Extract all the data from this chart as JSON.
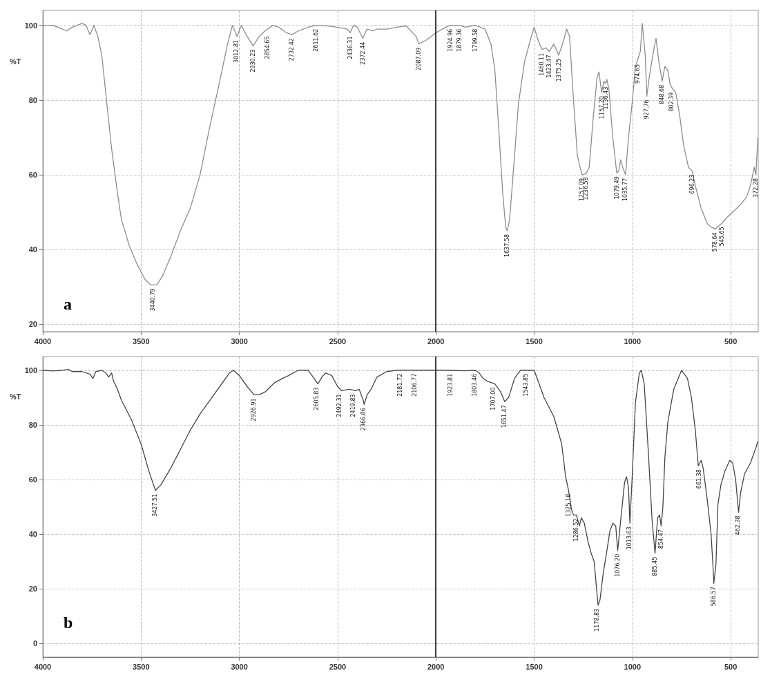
{
  "chart_data": [
    {
      "type": "line",
      "ylabel": "%T",
      "xlim": [
        4000,
        360
      ],
      "xticks": [
        4000,
        3500,
        3000,
        2500,
        2000,
        1500,
        1000,
        500
      ],
      "ylim": [
        18,
        104
      ],
      "yticks": [
        20,
        40,
        60,
        80,
        100
      ],
      "grid": true,
      "marker": "none",
      "series": [
        {
          "color": "#8c8c8c",
          "x": [
            4000,
            3950,
            3900,
            3880,
            3850,
            3800,
            3780,
            3760,
            3740,
            3720,
            3700,
            3680,
            3650,
            3620,
            3600,
            3560,
            3520,
            3480,
            3450,
            3420,
            3390,
            3350,
            3300,
            3250,
            3200,
            3150,
            3100,
            3060,
            3035,
            3012,
            2990,
            2960,
            2930,
            2900,
            2870,
            2830,
            2800,
            2760,
            2732,
            2700,
            2650,
            2611,
            2550,
            2500,
            2450,
            2436,
            2420,
            2400,
            2372,
            2350,
            2320,
            2300,
            2250,
            2200,
            2150,
            2100,
            2087,
            2050,
            2000,
            1950,
            1924,
            1880,
            1850,
            1800,
            1750,
            1720,
            1700,
            1680,
            1660,
            1645,
            1637,
            1625,
            1600,
            1580,
            1550,
            1520,
            1500,
            1480,
            1460,
            1440,
            1423,
            1400,
            1375,
            1350,
            1335,
            1320,
            1300,
            1280,
            1257,
            1236,
            1220,
            1200,
            1180,
            1170,
            1157,
            1145,
            1136,
            1130,
            1120,
            1100,
            1080,
            1070,
            1060,
            1050,
            1035,
            1020,
            1000,
            985,
            975,
            960,
            950,
            935,
            927,
            915,
            890,
            880,
            865,
            849,
            835,
            820,
            808,
            795,
            780,
            760,
            740,
            715,
            696,
            680,
            650,
            620,
            600,
            578,
            546,
            520,
            480,
            450,
            420,
            400,
            380,
            372,
            362
          ],
          "values": [
            100,
            100,
            99,
            98.5,
            99.5,
            100.5,
            100,
            97.5,
            100,
            97,
            92,
            82,
            67,
            55,
            48,
            41,
            36,
            32,
            30.5,
            30.5,
            33,
            38,
            45,
            51,
            60,
            73,
            85,
            95,
            100,
            97,
            100,
            97,
            94.5,
            97,
            98.5,
            100,
            99.5,
            98,
            97.5,
            98.5,
            99.5,
            100,
            99.8,
            99.5,
            99,
            98,
            100,
            99.5,
            96.5,
            99,
            98.5,
            99,
            99,
            99.5,
            99.8,
            97,
            95,
            96,
            98,
            99.5,
            100,
            100,
            99.5,
            100,
            99,
            95,
            88,
            72,
            55,
            46,
            45,
            48,
            65,
            79,
            90,
            96,
            99.5,
            96,
            93.5,
            94,
            93,
            95,
            92,
            96,
            99,
            97,
            80,
            65,
            60,
            60.3,
            62,
            75,
            86,
            87.5,
            82,
            85,
            84.5,
            85.5,
            83,
            70,
            60.5,
            61,
            64,
            62,
            60,
            70,
            80,
            89,
            90.5,
            93,
            100.5,
            92,
            81,
            86,
            94,
            96.5,
            90,
            85,
            89,
            88,
            84,
            83,
            82,
            76,
            68,
            62,
            61,
            57,
            51,
            47,
            46,
            45.5,
            47,
            48.5,
            50.5,
            52,
            54,
            57,
            62,
            60,
            70
          ]
        }
      ],
      "ref_lines": [
        {
          "axis": "x",
          "value": 2000,
          "color": "#000000",
          "line_style": "solid"
        }
      ],
      "annotations": [
        "a",
        {
          "text": "3440.79",
          "x": 3440.79,
          "y": 30.5
        },
        {
          "text": "3012.81",
          "x": 3012.81,
          "y": 97
        },
        {
          "text": "2930.23",
          "x": 2930.23,
          "y": 94.5
        },
        {
          "text": "2854.65",
          "x": 2854.65,
          "y": 98
        },
        {
          "text": "2732.42",
          "x": 2732.42,
          "y": 97.5
        },
        {
          "text": "2611.62",
          "x": 2611.62,
          "y": 100
        },
        {
          "text": "2436.31",
          "x": 2436.31,
          "y": 98
        },
        {
          "text": "2372.44",
          "x": 2372.44,
          "y": 96.5
        },
        {
          "text": "2087.09",
          "x": 2087.09,
          "y": 95
        },
        {
          "text": "1924.96",
          "x": 1924.96,
          "y": 100
        },
        {
          "text": "1879.36",
          "x": 1879.36,
          "y": 100
        },
        {
          "text": "1799.58",
          "x": 1799.58,
          "y": 100
        },
        {
          "text": "1637.58",
          "x": 1637.58,
          "y": 45
        },
        {
          "text": "1460.11",
          "x": 1460.11,
          "y": 93.5
        },
        {
          "text": "1423.47",
          "x": 1423.47,
          "y": 93
        },
        {
          "text": "1375.25",
          "x": 1375.25,
          "y": 92
        },
        {
          "text": "1257.09",
          "x": 1257.09,
          "y": 60
        },
        {
          "text": "1236.58",
          "x": 1236.58,
          "y": 60.3
        },
        {
          "text": "1157.20",
          "x": 1157.2,
          "y": 82
        },
        {
          "text": "1136.43",
          "x": 1136.43,
          "y": 84.5
        },
        {
          "text": "1079.49",
          "x": 1079.49,
          "y": 60.5
        },
        {
          "text": "1035.77",
          "x": 1035.77,
          "y": 60
        },
        {
          "text": "974.65",
          "x": 974.65,
          "y": 90.5
        },
        {
          "text": "927.76",
          "x": 927.76,
          "y": 81
        },
        {
          "text": "848.68",
          "x": 848.68,
          "y": 85
        },
        {
          "text": "802.39",
          "x": 802.39,
          "y": 83
        },
        {
          "text": "696.23",
          "x": 696.23,
          "y": 61
        },
        {
          "text": "578.64",
          "x": 578.64,
          "y": 45.5
        },
        {
          "text": "545.65",
          "x": 545.65,
          "y": 47
        },
        {
          "text": "372.28",
          "x": 372.28,
          "y": 60
        }
      ]
    },
    {
      "type": "line",
      "ylabel": "%T",
      "xlim": [
        4000,
        360
      ],
      "xticks": [
        4000,
        3500,
        3000,
        2500,
        2000,
        1500,
        1000,
        500
      ],
      "ylim": [
        -5,
        105
      ],
      "yticks": [
        0,
        20,
        40,
        60,
        80,
        100
      ],
      "grid": true,
      "marker": "none",
      "series": [
        {
          "color": "#444444",
          "x": [
            4000,
            3950,
            3900,
            3870,
            3850,
            3800,
            3760,
            3745,
            3730,
            3700,
            3680,
            3665,
            3650,
            3640,
            3620,
            3600,
            3550,
            3500,
            3460,
            3427,
            3400,
            3350,
            3300,
            3250,
            3200,
            3150,
            3100,
            3050,
            3030,
            3000,
            2960,
            2925,
            2900,
            2870,
            2820,
            2780,
            2750,
            2700,
            2650,
            2620,
            2600,
            2580,
            2560,
            2530,
            2500,
            2480,
            2440,
            2410,
            2390,
            2370,
            2365,
            2350,
            2330,
            2300,
            2250,
            2200,
            2106,
            2000,
            1950,
            1850,
            1800,
            1780,
            1760,
            1740,
            1700,
            1670,
            1650,
            1630,
            1600,
            1570,
            1500,
            1480,
            1450,
            1400,
            1380,
            1360,
            1340,
            1325,
            1310,
            1300,
            1285,
            1270,
            1260,
            1245,
            1225,
            1210,
            1195,
            1175,
            1165,
            1150,
            1130,
            1115,
            1100,
            1085,
            1075,
            1060,
            1040,
            1030,
            1020,
            1013,
            1000,
            985,
            965,
            955,
            940,
            920,
            900,
            885,
            872,
            862,
            854,
            845,
            835,
            820,
            790,
            750,
            720,
            700,
            680,
            665,
            650,
            640,
            620,
            600,
            590,
            586,
            575,
            565,
            550,
            530,
            505,
            490,
            475,
            460,
            450,
            430,
            400,
            370,
            362
          ],
          "values": [
            100,
            99.7,
            100,
            100.3,
            99.5,
            99.5,
            98.5,
            97,
            99.5,
            100,
            99,
            97.5,
            99,
            96,
            93,
            89,
            82,
            73,
            63,
            56,
            58,
            64,
            71,
            78,
            84,
            89,
            94,
            99,
            100,
            98,
            94,
            91,
            91,
            92,
            95.5,
            97,
            98,
            100,
            100,
            97,
            95,
            97.5,
            99,
            98,
            94,
            92.5,
            93,
            92.5,
            93,
            89,
            87.5,
            91,
            93,
            97.5,
            99.5,
            100,
            100,
            100,
            100,
            99.8,
            100,
            99,
            97,
            96,
            95,
            92,
            88.5,
            90,
            97,
            100,
            100,
            96,
            90,
            83,
            78,
            73,
            61,
            56,
            49,
            47,
            47,
            43,
            46,
            44,
            37,
            33,
            30,
            14,
            16,
            25,
            34,
            41,
            44,
            43,
            34,
            45,
            59,
            61,
            57,
            44,
            63,
            88,
            99,
            100,
            95,
            71,
            45,
            33,
            46,
            47,
            43,
            50,
            68,
            81,
            93,
            100,
            97,
            90,
            78,
            65,
            67,
            64,
            53,
            40,
            28,
            22,
            29,
            51,
            58,
            63,
            67,
            66,
            60,
            48,
            55,
            62,
            66,
            72,
            74
          ]
        }
      ],
      "ref_lines": [
        {
          "axis": "x",
          "value": 2000,
          "color": "#000000",
          "line_style": "solid"
        }
      ],
      "annotations": [
        "b",
        {
          "text": "3427.51",
          "x": 3427.51,
          "y": 56
        },
        {
          "text": "2926.91",
          "x": 2926.91,
          "y": 91
        },
        {
          "text": "2605.83",
          "x": 2605.83,
          "y": 95
        },
        {
          "text": "2492.31",
          "x": 2492.31,
          "y": 92.5
        },
        {
          "text": "2419.83",
          "x": 2419.83,
          "y": 92.5
        },
        {
          "text": "2366.86",
          "x": 2366.86,
          "y": 87.5
        },
        {
          "text": "2181.72",
          "x": 2181.72,
          "y": 100
        },
        {
          "text": "2106.77",
          "x": 2106.77,
          "y": 100
        },
        {
          "text": "1923.81",
          "x": 1923.81,
          "y": 100
        },
        {
          "text": "1803.46",
          "x": 1803.46,
          "y": 100
        },
        {
          "text": "1707.00",
          "x": 1707,
          "y": 95
        },
        {
          "text": "1651.47",
          "x": 1651.47,
          "y": 88.5
        },
        {
          "text": "1543.85",
          "x": 1543.85,
          "y": 100
        },
        {
          "text": "1325.18",
          "x": 1325.18,
          "y": 56
        },
        {
          "text": "1286.52",
          "x": 1286.52,
          "y": 47
        },
        {
          "text": "1178.83",
          "x": 1178.83,
          "y": 14
        },
        {
          "text": "1076.20",
          "x": 1076.2,
          "y": 34
        },
        {
          "text": "1013.63",
          "x": 1013.63,
          "y": 44
        },
        {
          "text": "885.45",
          "x": 885.45,
          "y": 33
        },
        {
          "text": "854.47",
          "x": 854.47,
          "y": 43
        },
        {
          "text": "661.38",
          "x": 661.38,
          "y": 65
        },
        {
          "text": "586.57",
          "x": 586.57,
          "y": 22
        },
        {
          "text": "462.38",
          "x": 462.38,
          "y": 48
        }
      ]
    }
  ]
}
